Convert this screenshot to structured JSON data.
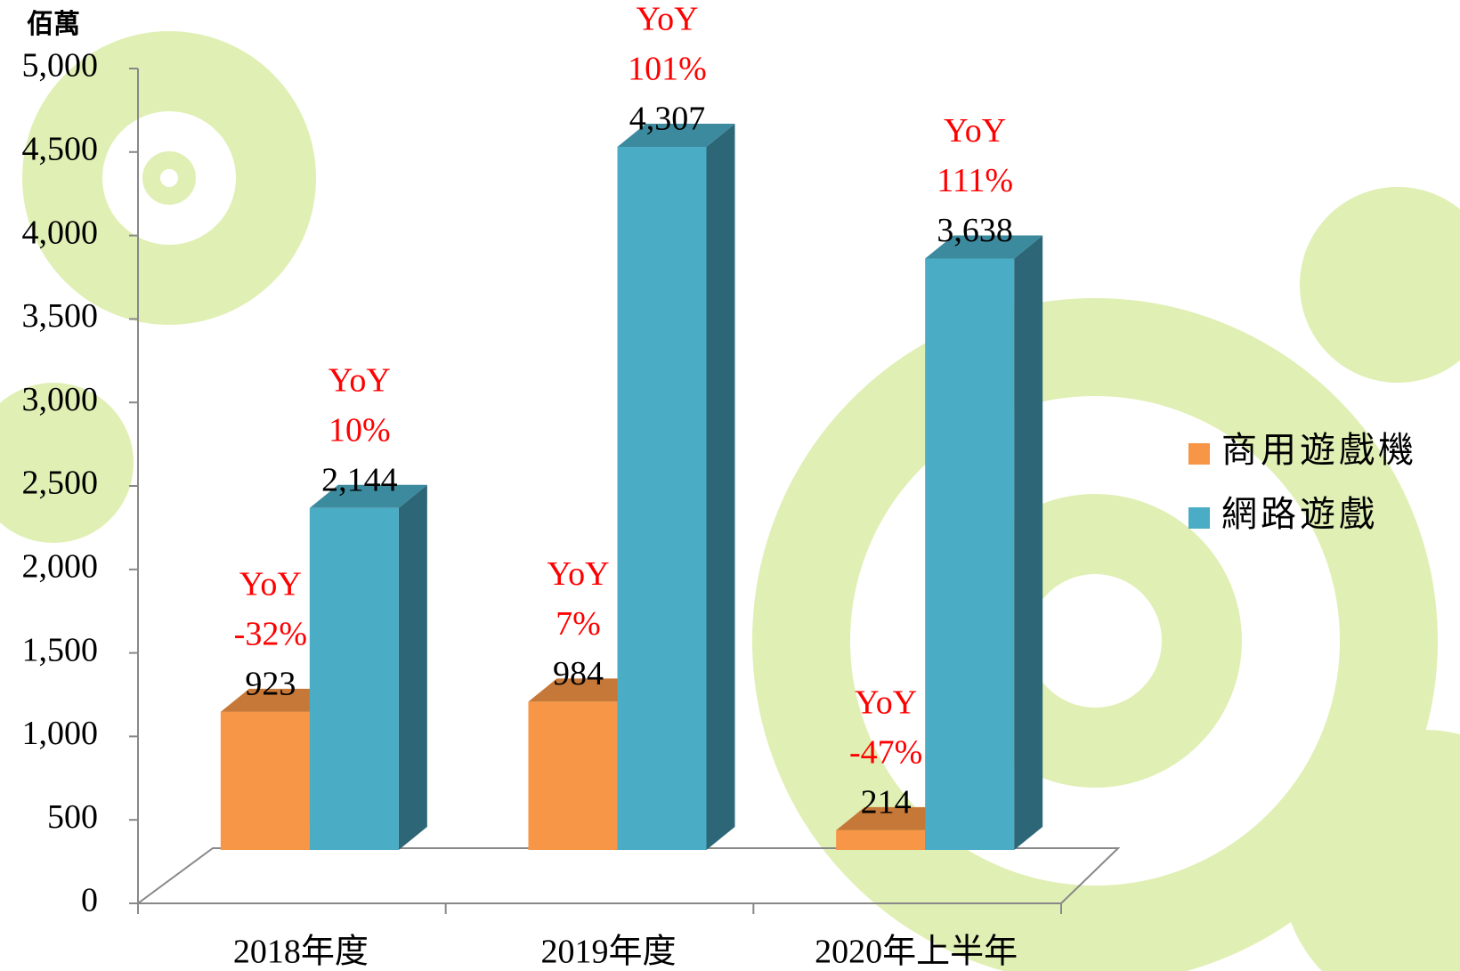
{
  "chart_data": {
    "type": "bar3d",
    "y_unit_label": "佰萬",
    "categories": [
      "2018年度",
      "2019年度",
      "2020年上半年"
    ],
    "series": [
      {
        "name": "商用遊戲機",
        "color": "#f79646",
        "values": [
          923,
          984,
          214
        ],
        "value_labels": [
          "923",
          "984",
          "214"
        ],
        "yoy_label": "YoY",
        "yoy": [
          "-32%",
          "7%",
          "-47%"
        ]
      },
      {
        "name": "網路遊戲",
        "color": "#4bacc6",
        "values": [
          2144,
          4307,
          3638
        ],
        "value_labels": [
          "2,144",
          "4,307",
          "3,638"
        ],
        "yoy_label": "YoY",
        "yoy": [
          "10%",
          "101%",
          "111%"
        ]
      }
    ],
    "ylim": [
      0,
      5000
    ],
    "yticks": [
      0,
      500,
      {
        "value": 1000,
        "label": "1,000"
      },
      {
        "value": 1500,
        "label": "1,500"
      },
      {
        "value": 2000,
        "label": "2,000"
      },
      {
        "value": 2500,
        "label": "2,500"
      },
      {
        "value": 3000,
        "label": "3,000"
      },
      {
        "value": 3500,
        "label": "3,500"
      },
      {
        "value": 4000,
        "label": "4,000"
      },
      {
        "value": 4500,
        "label": "4,500"
      },
      {
        "value": 5000,
        "label": "5,000"
      }
    ],
    "legend": "right"
  }
}
